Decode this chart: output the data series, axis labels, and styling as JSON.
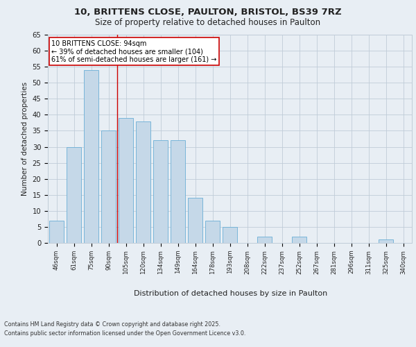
{
  "title_line1": "10, BRITTENS CLOSE, PAULTON, BRISTOL, BS39 7RZ",
  "title_line2": "Size of property relative to detached houses in Paulton",
  "xlabel": "Distribution of detached houses by size in Paulton",
  "ylabel": "Number of detached properties",
  "categories": [
    "46sqm",
    "61sqm",
    "75sqm",
    "90sqm",
    "105sqm",
    "120sqm",
    "134sqm",
    "149sqm",
    "164sqm",
    "178sqm",
    "193sqm",
    "208sqm",
    "222sqm",
    "237sqm",
    "252sqm",
    "267sqm",
    "281sqm",
    "296sqm",
    "311sqm",
    "325sqm",
    "340sqm"
  ],
  "values": [
    7,
    30,
    54,
    35,
    39,
    38,
    32,
    32,
    14,
    7,
    5,
    0,
    2,
    0,
    2,
    0,
    0,
    0,
    0,
    1,
    0
  ],
  "bar_color": "#c5d8e8",
  "bar_edge_color": "#6aaed6",
  "vline_x": 3.5,
  "vline_color": "#cc0000",
  "annotation_text": "10 BRITTENS CLOSE: 94sqm\n← 39% of detached houses are smaller (104)\n61% of semi-detached houses are larger (161) →",
  "annotation_box_color": "#ffffff",
  "annotation_box_edge": "#cc0000",
  "ylim": [
    0,
    65
  ],
  "yticks": [
    0,
    5,
    10,
    15,
    20,
    25,
    30,
    35,
    40,
    45,
    50,
    55,
    60,
    65
  ],
  "footer_line1": "Contains HM Land Registry data © Crown copyright and database right 2025.",
  "footer_line2": "Contains public sector information licensed under the Open Government Licence v3.0.",
  "bg_color": "#e8eef4",
  "grid_color": "#c0ccd8"
}
